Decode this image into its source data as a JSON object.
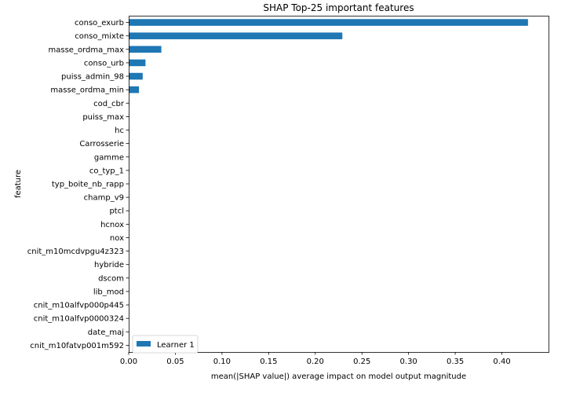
{
  "chart_data": {
    "type": "bar",
    "orientation": "horizontal",
    "title": "SHAP Top-25 important features",
    "xlabel": "mean(|SHAP value|) average impact on model output magnitude",
    "ylabel": "feature",
    "xlim": [
      0.0,
      0.45
    ],
    "x_ticks": [
      "0.00",
      "0.05",
      "0.10",
      "0.15",
      "0.20",
      "0.25",
      "0.30",
      "0.35",
      "0.40"
    ],
    "grid": false,
    "legend_position": "lower-left",
    "categories": [
      "conso_exurb",
      "conso_mixte",
      "masse_ordma_max",
      "conso_urb",
      "puiss_admin_98",
      "masse_ordma_min",
      "cod_cbr",
      "puiss_max",
      "hc",
      "Carrosserie",
      "gamme",
      "co_typ_1",
      "typ_boite_nb_rapp",
      "champ_v9",
      "ptcl",
      "hcnox",
      "nox",
      "cnit_m10mcdvpgu4z323",
      "hybride",
      "dscom",
      "lib_mod",
      "cnit_m10alfvp000p445",
      "cnit_m10alfvp0000324",
      "date_maj",
      "cnit_m10fatvp001m592"
    ],
    "series": [
      {
        "name": "Learner 1",
        "color": "#1f77b4",
        "values": [
          0.428,
          0.229,
          0.035,
          0.018,
          0.015,
          0.011,
          0.0005,
          0.0004,
          0.0003,
          0.0003,
          0.0002,
          0.0002,
          0.0002,
          0.0001,
          0.0001,
          0.0001,
          0.0001,
          0.0001,
          0.0001,
          0.0001,
          0.0001,
          0.0,
          0.0,
          0.0,
          0.0
        ]
      }
    ]
  }
}
